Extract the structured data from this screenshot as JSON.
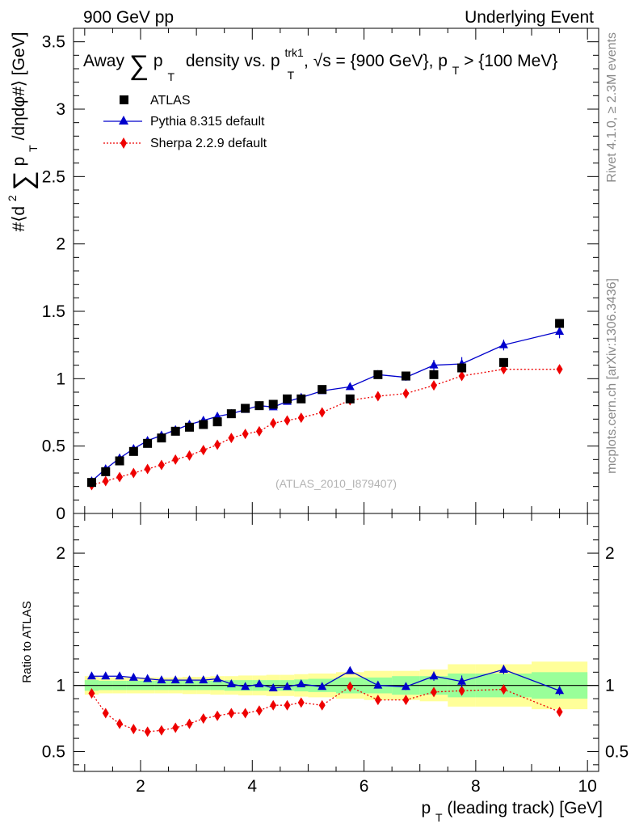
{
  "header": {
    "left": "900 GeV pp",
    "right": "Underlying Event"
  },
  "side_labels": {
    "rivet": "Rivet 4.1.0, ≥ 2.3M events",
    "mcplots": "mcplots.cern.ch [arXiv:1306.3436]"
  },
  "watermark": "(ATLAS_2010_I879407)",
  "colors": {
    "atlas": "#000000",
    "pythia": "#0000cc",
    "sherpa": "#ee0000",
    "band_inner": "#99ff99",
    "band_outer": "#ffff99"
  },
  "chart_data": [
    {
      "type": "scatter",
      "title_parts": {
        "pre": "Away",
        "sum": "∑",
        "p": "p",
        "T": "T",
        "mid": "density vs. p",
        "trk": "trk1",
        "T2": "T",
        "sqrt": ", √s = {900 GeV}, p",
        "T3": "T",
        "post": " > {100 MeV}"
      },
      "ylabel_parts": {
        "pre": "#⟨d",
        "exp": "2",
        "sum": "∑",
        "p": "p",
        "T": "T",
        "post": "/dηdφ#⟩ [GeV]"
      },
      "xlim": [
        0.8,
        10.2
      ],
      "ylim": [
        0,
        3.6
      ],
      "yticks": [
        {
          "v": 0,
          "label": "0"
        },
        {
          "v": 0.5,
          "label": "0.5"
        },
        {
          "v": 1,
          "label": "1"
        },
        {
          "v": 1.5,
          "label": "1.5"
        },
        {
          "v": 2,
          "label": "2"
        },
        {
          "v": 2.5,
          "label": "2.5"
        },
        {
          "v": 3,
          "label": "3"
        },
        {
          "v": 3.5,
          "label": "3.5"
        }
      ],
      "legend": [
        "ATLAS",
        "Pythia 8.315 default",
        "Sherpa 2.2.9 default"
      ],
      "legend_position": "top-left",
      "x": [
        1.125,
        1.375,
        1.625,
        1.875,
        2.125,
        2.375,
        2.625,
        2.875,
        3.125,
        3.375,
        3.625,
        3.875,
        4.125,
        4.375,
        4.625,
        4.875,
        5.25,
        5.75,
        6.25,
        6.75,
        7.25,
        7.75,
        8.5,
        9.5
      ],
      "series": [
        {
          "name": "ATLAS",
          "values": [
            0.23,
            0.31,
            0.39,
            0.46,
            0.52,
            0.56,
            0.61,
            0.64,
            0.66,
            0.68,
            0.74,
            0.78,
            0.8,
            0.81,
            0.85,
            0.85,
            0.92,
            0.85,
            1.03,
            1.02,
            1.03,
            1.08,
            1.12,
            1.41
          ]
        },
        {
          "name": "Pythia 8.315 default",
          "values": [
            0.24,
            0.33,
            0.41,
            0.48,
            0.54,
            0.58,
            0.62,
            0.66,
            0.69,
            0.72,
            0.74,
            0.77,
            0.8,
            0.79,
            0.83,
            0.86,
            0.91,
            0.94,
            1.03,
            1.01,
            1.1,
            1.11,
            1.25,
            1.35
          ],
          "errors": [
            0.01,
            0.01,
            0.01,
            0.01,
            0.01,
            0.01,
            0.01,
            0.01,
            0.01,
            0.01,
            0.01,
            0.01,
            0.01,
            0.01,
            0.01,
            0.01,
            0.015,
            0.02,
            0.02,
            0.025,
            0.04,
            0.05,
            0.04,
            0.05
          ]
        },
        {
          "name": "Sherpa 2.2.9 default",
          "values": [
            0.21,
            0.24,
            0.27,
            0.3,
            0.33,
            0.36,
            0.4,
            0.43,
            0.47,
            0.51,
            0.56,
            0.59,
            0.61,
            0.67,
            0.69,
            0.71,
            0.75,
            0.84,
            0.87,
            0.89,
            0.95,
            1.02,
            1.07,
            1.07
          ],
          "errors": [
            0.01,
            0.01,
            0.01,
            0.01,
            0.01,
            0.01,
            0.01,
            0.01,
            0.01,
            0.01,
            0.01,
            0.01,
            0.01,
            0.01,
            0.01,
            0.01,
            0.015,
            0.02,
            0.02,
            0.02,
            0.03,
            0.03,
            0.03,
            0.03
          ]
        }
      ]
    },
    {
      "type": "line",
      "ylabel": "Ratio to ATLAS",
      "xlabel_parts": {
        "p": "p",
        "T": "T",
        "post": " (leading track) [GeV]"
      },
      "xlim": [
        0.8,
        10.2
      ],
      "ylim": [
        0.35,
        2.3
      ],
      "xticks": [
        {
          "v": 2,
          "label": "2"
        },
        {
          "v": 4,
          "label": "4"
        },
        {
          "v": 6,
          "label": "6"
        },
        {
          "v": 8,
          "label": "8"
        },
        {
          "v": 10,
          "label": "10"
        }
      ],
      "yticks": [
        {
          "v": 0.5,
          "label": "0.5"
        },
        {
          "v": 1,
          "label": "1"
        },
        {
          "v": 2,
          "label": "2"
        }
      ],
      "bands": {
        "edges": [
          1.0,
          1.25,
          1.5,
          1.75,
          2.0,
          2.25,
          2.5,
          2.75,
          3.0,
          3.25,
          3.5,
          3.75,
          4.0,
          4.25,
          4.5,
          4.75,
          5.0,
          5.5,
          6.0,
          6.5,
          7.0,
          7.5,
          8.0,
          9.0,
          10.0
        ],
        "inner": [
          0.04,
          0.035,
          0.035,
          0.035,
          0.035,
          0.035,
          0.035,
          0.035,
          0.035,
          0.035,
          0.04,
          0.04,
          0.04,
          0.04,
          0.04,
          0.045,
          0.05,
          0.06,
          0.06,
          0.07,
          0.07,
          0.09,
          0.09,
          0.1
        ],
        "outer": [
          0.07,
          0.06,
          0.06,
          0.06,
          0.06,
          0.06,
          0.06,
          0.065,
          0.065,
          0.07,
          0.07,
          0.075,
          0.075,
          0.08,
          0.08,
          0.085,
          0.09,
          0.1,
          0.11,
          0.11,
          0.12,
          0.16,
          0.16,
          0.18
        ]
      },
      "series": [
        {
          "name": "Pythia 8.315 default",
          "values": [
            1.07,
            1.07,
            1.07,
            1.06,
            1.05,
            1.04,
            1.04,
            1.04,
            1.04,
            1.05,
            1.01,
            0.99,
            1.01,
            0.98,
            0.99,
            1.01,
            0.99,
            1.11,
            1.0,
            0.99,
            1.07,
            1.03,
            1.12,
            0.96
          ],
          "errors": [
            0.01,
            0.01,
            0.01,
            0.01,
            0.01,
            0.01,
            0.01,
            0.01,
            0.01,
            0.01,
            0.01,
            0.01,
            0.01,
            0.01,
            0.01,
            0.01,
            0.015,
            0.02,
            0.02,
            0.025,
            0.035,
            0.045,
            0.035,
            0.035
          ]
        },
        {
          "name": "Sherpa 2.2.9 default",
          "values": [
            0.94,
            0.79,
            0.71,
            0.67,
            0.65,
            0.66,
            0.68,
            0.71,
            0.75,
            0.77,
            0.79,
            0.79,
            0.81,
            0.85,
            0.85,
            0.87,
            0.85,
            0.99,
            0.89,
            0.89,
            0.95,
            0.96,
            0.97,
            0.8
          ],
          "errors": [
            0.01,
            0.01,
            0.01,
            0.01,
            0.01,
            0.01,
            0.01,
            0.01,
            0.01,
            0.01,
            0.01,
            0.01,
            0.01,
            0.01,
            0.01,
            0.01,
            0.015,
            0.02,
            0.02,
            0.02,
            0.03,
            0.03,
            0.03,
            0.03
          ]
        }
      ]
    }
  ]
}
